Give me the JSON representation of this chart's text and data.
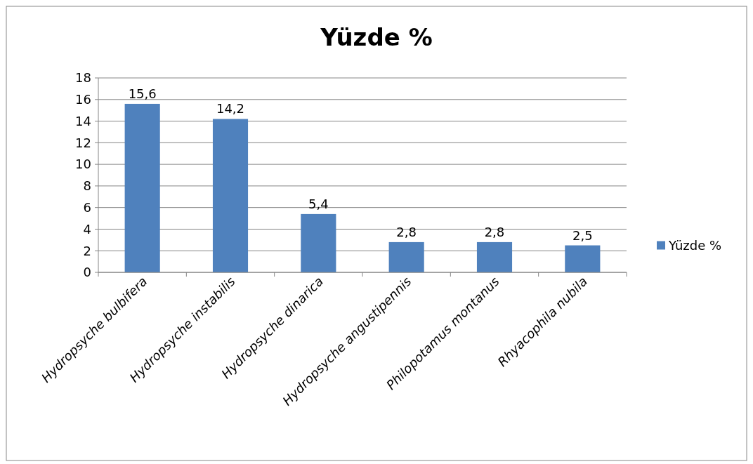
{
  "chart_data": {
    "type": "bar",
    "title": "Yüzde %",
    "categories": [
      "Hydropsyche bulbifera",
      "Hydropsyche instabilis",
      "Hydropsyche dinarica",
      "Hydropsyche angustipennis",
      "Philopotamus montanus",
      "Rhyacophila nubila"
    ],
    "series": [
      {
        "name": "Yüzde %",
        "color": "#4f81bd",
        "values": [
          15.6,
          14.2,
          5.4,
          2.8,
          2.8,
          2.5
        ],
        "value_labels": [
          "15,6",
          "14,2",
          "5,4",
          "2,8",
          "2,8",
          "2,5"
        ]
      }
    ],
    "ylim": [
      0,
      18
    ],
    "yticks": [
      0,
      2,
      4,
      6,
      8,
      10,
      12,
      14,
      16,
      18
    ],
    "grid": "y",
    "legend": "right"
  }
}
